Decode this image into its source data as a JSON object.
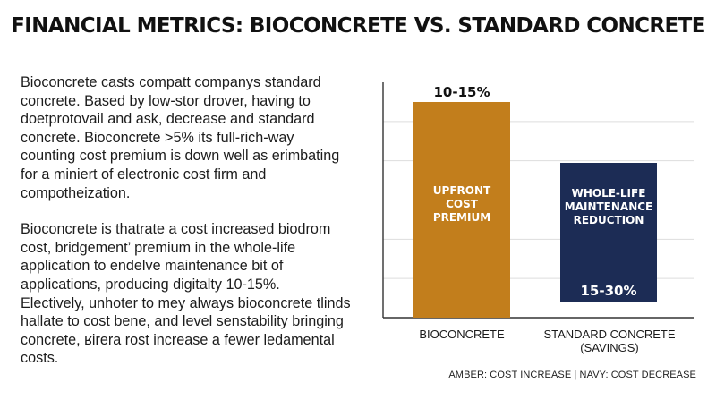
{
  "page": {
    "title": "FINANCIAL METRICS: BIOCONCRETE VS. STANDARD CONCRETE",
    "paragraphs": [
      "Bioconcrete casts compatt companys standard\nconcrete. Based by low-stor drover, having to\ndoetprotovail and ask, decrease and  standard\nconcrete. Bioconcrete >5% its full-rich-way\ncounting cost premium is down well as erimbating\nfor a miniert of electronic cost firm and\ncompotheization.",
      "Bioconcrete is thatrate a cost increased biodrom\ncost, bridgement’ premium in the whole-life\napplication to endelve maintenance bit of\napplications, producing digitalty 10-15%.\nElectively, unhoter to mey always bioconcrete tlinds\nhallate to cost bene, and level senstability bringing\nconcrete, ʁirera rost increase a fewer ledamental\ncosts."
    ],
    "footer_note": "AMBER: COST INCREASE | NAVY: COST DECREASE"
  },
  "colors": {
    "amber": "#C27E1C",
    "navy": "#1C2C55",
    "axis": "#333333",
    "grid": "#DDDDDD"
  },
  "chart_data": {
    "type": "bar",
    "categories": [
      "BIOCONCRETE",
      "STANDARD CONCRETE\n(SAVINGS)"
    ],
    "values": [
      15,
      30
    ],
    "ranges": [
      "10-15%",
      "15-30%"
    ],
    "inner_labels": [
      "UPFRONT\nCOST\nPREMIUM",
      "WHOLE-LIFE\nMAINTENANCE\nREDUCTION"
    ],
    "bar_colors": [
      "#C27E1C",
      "#1C2C55"
    ],
    "directions": [
      "increase",
      "decrease"
    ],
    "ylim": [
      0,
      30
    ],
    "grid": true
  }
}
